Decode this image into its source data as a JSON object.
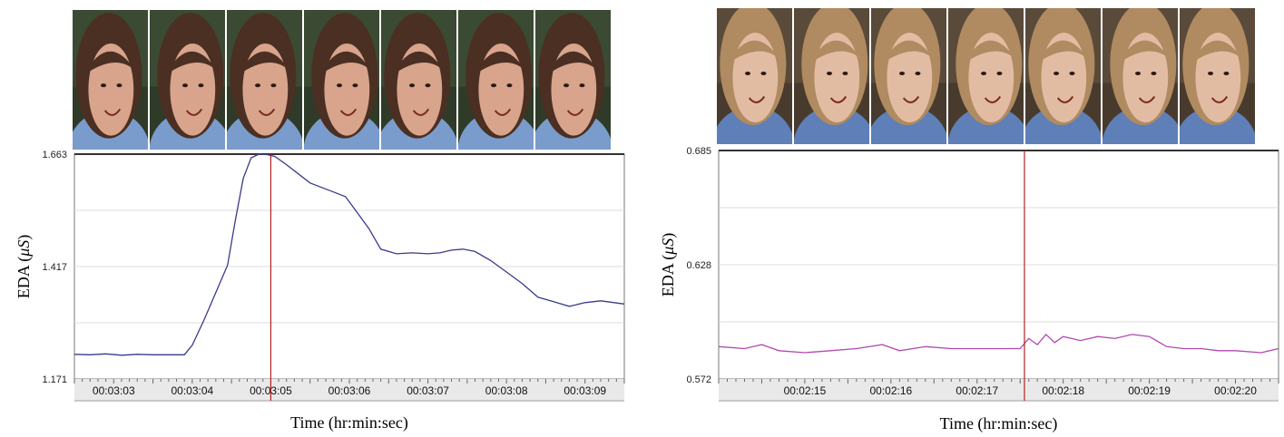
{
  "chart_data": [
    {
      "type": "line",
      "title": "",
      "ylabel": "EDA (μS)",
      "ylabel_main": "EDA (",
      "ylabel_unit": "μS",
      "ylabel_close": ")",
      "xlabel": "Time (hr:min:sec)",
      "ylim": [
        1.171,
        1.663
      ],
      "y_ticks": [
        "1.171",
        "1.417",
        "1.663"
      ],
      "x_ticks": [
        "00:03:03",
        "00:03:04",
        "00:03:05",
        "00:03:06",
        "00:03:07",
        "00:03:08",
        "00:03:09"
      ],
      "x_range_seconds": [
        0,
        7
      ],
      "marker_x": 2.5,
      "grid": true,
      "line_color": "#3a3a8c",
      "marker_color": "#b22222",
      "series": [
        {
          "x": [
            0,
            0.2,
            0.4,
            0.6,
            0.8,
            1.0,
            1.4,
            1.5,
            1.65,
            1.8,
            1.95,
            2.05,
            2.15,
            2.25,
            2.35,
            2.45,
            2.55,
            2.7,
            2.85,
            3.0,
            3.15,
            3.3,
            3.45,
            3.6,
            3.75,
            3.9,
            4.1,
            4.3,
            4.5,
            4.65,
            4.8,
            4.95,
            5.1,
            5.3,
            5.5,
            5.7,
            5.9,
            6.1,
            6.3,
            6.5,
            6.7,
            7.0
          ],
          "y": [
            1.225,
            1.224,
            1.226,
            1.223,
            1.225,
            1.224,
            1.224,
            1.245,
            1.3,
            1.36,
            1.42,
            1.52,
            1.61,
            1.655,
            1.663,
            1.662,
            1.658,
            1.64,
            1.62,
            1.6,
            1.59,
            1.58,
            1.57,
            1.535,
            1.5,
            1.455,
            1.445,
            1.447,
            1.445,
            1.447,
            1.453,
            1.455,
            1.45,
            1.43,
            1.405,
            1.38,
            1.35,
            1.34,
            1.33,
            1.338,
            1.342,
            1.335
          ]
        }
      ]
    },
    {
      "type": "line",
      "title": "",
      "ylabel": "EDA (μS)",
      "ylabel_main": "EDA (",
      "ylabel_unit": "μS",
      "ylabel_close": ")",
      "xlabel": "Time (hr:min:sec)",
      "ylim": [
        0.572,
        0.685
      ],
      "y_ticks": [
        "0.572",
        "0.628",
        "0.685"
      ],
      "x_ticks": [
        "00:02:15",
        "00:02:16",
        "00:02:17",
        "00:02:18",
        "00:02:19",
        "00:02:20"
      ],
      "x_range_seconds": [
        0,
        6.5
      ],
      "marker_x": 3.55,
      "grid": true,
      "line_color": "#b04ab0",
      "marker_color": "#b22222",
      "series": [
        {
          "x": [
            0,
            0.3,
            0.5,
            0.7,
            1.0,
            1.3,
            1.6,
            1.9,
            2.1,
            2.4,
            2.7,
            3.0,
            3.3,
            3.5,
            3.6,
            3.7,
            3.8,
            3.9,
            4.0,
            4.2,
            4.4,
            4.6,
            4.8,
            5.0,
            5.2,
            5.4,
            5.6,
            5.8,
            6.0,
            6.3,
            6.5
          ],
          "y": [
            0.588,
            0.587,
            0.589,
            0.586,
            0.585,
            0.586,
            0.587,
            0.589,
            0.586,
            0.588,
            0.587,
            0.587,
            0.587,
            0.587,
            0.592,
            0.589,
            0.594,
            0.59,
            0.593,
            0.591,
            0.593,
            0.592,
            0.594,
            0.593,
            0.588,
            0.587,
            0.587,
            0.586,
            0.586,
            0.585,
            0.587
          ]
        }
      ]
    }
  ],
  "frames": {
    "left_colors": {
      "hair": "#4a2f22",
      "skin": "#d8a48c",
      "bg": "#3b4a32",
      "shirt": "#7a9ccc"
    },
    "right_colors": {
      "hair": "#b08a60",
      "skin": "#e2bca2",
      "bg": "#5a4a3a",
      "shirt": "#5e7fb8"
    }
  }
}
